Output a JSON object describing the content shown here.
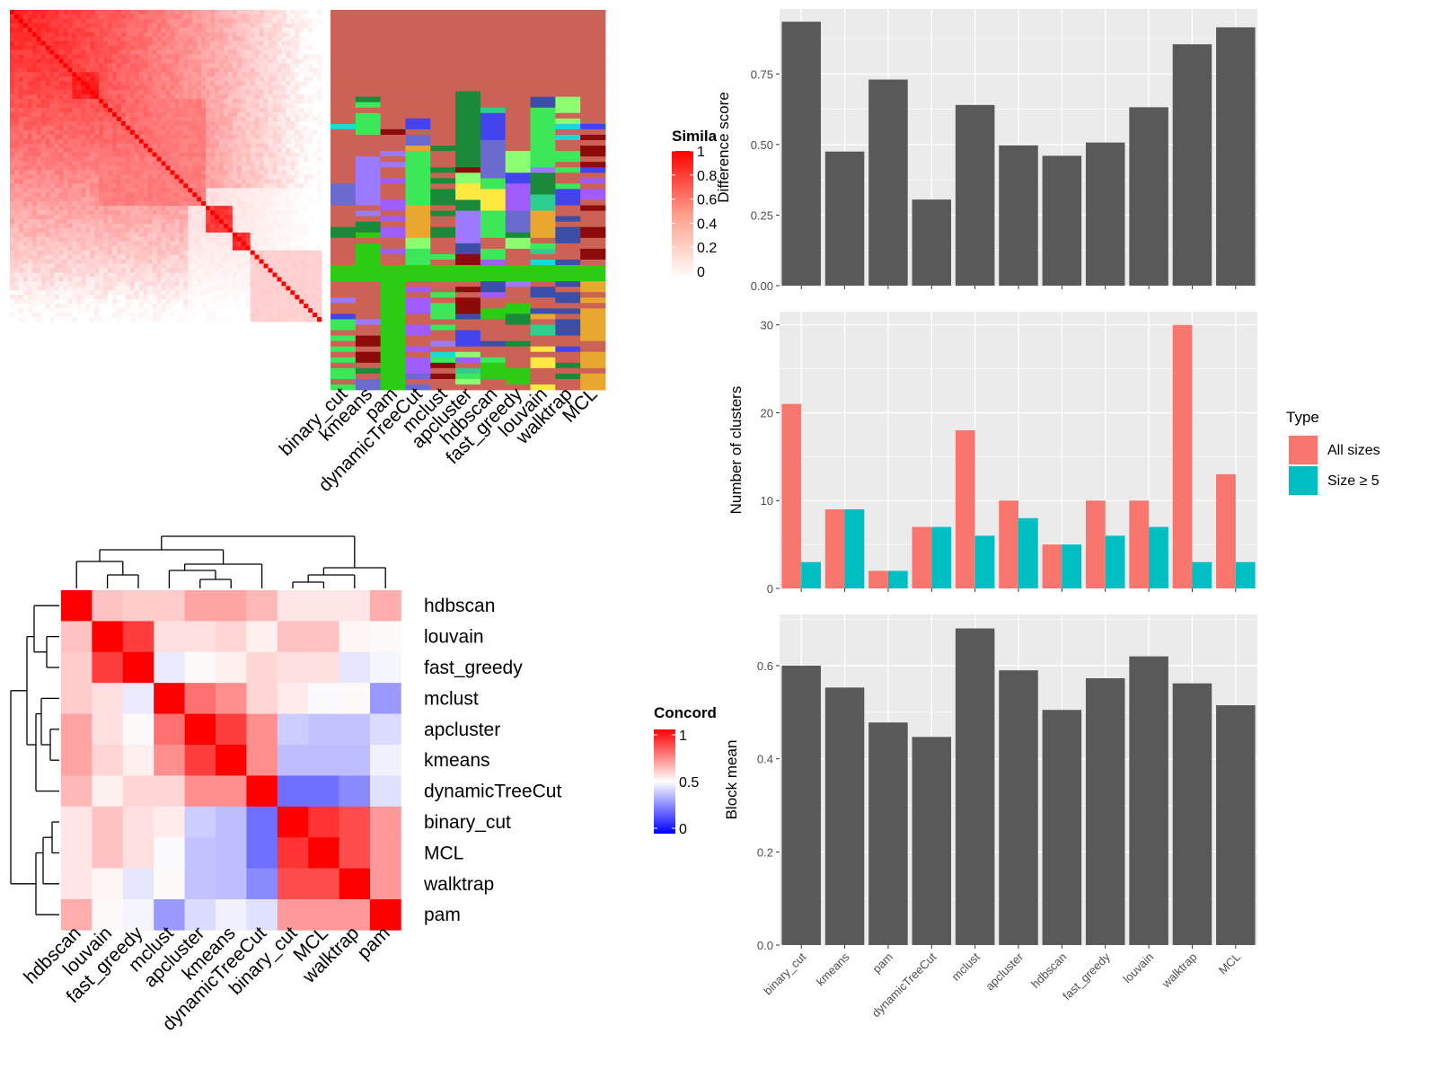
{
  "methods": [
    "binary_cut",
    "kmeans",
    "pam",
    "dynamicTreeCut",
    "mclust",
    "apcluster",
    "hdbscan",
    "fast_greedy",
    "louvain",
    "walktrap",
    "MCL"
  ],
  "similarity_legend": {
    "title": "Simila",
    "ticks": [
      "1",
      "0.8",
      "0.6",
      "0.4",
      "0.2",
      "0"
    ]
  },
  "concordance_legend": {
    "title": "Concord",
    "ticks": [
      "1",
      "0.5",
      "0"
    ]
  },
  "concordance_order": [
    "hdbscan",
    "louvain",
    "fast_greedy",
    "mclust",
    "apcluster",
    "kmeans",
    "dynamicTreeCut",
    "binary_cut",
    "MCL",
    "walktrap",
    "pam"
  ],
  "chart_data": [
    {
      "type": "heatmap",
      "description_key": "similarity",
      "legend": "Simila",
      "columns": [
        "binary_cut",
        "kmeans",
        "pam",
        "dynamicTreeCut",
        "mclust",
        "apcluster",
        "hdbscan",
        "fast_greedy",
        "louvain",
        "walktrap",
        "MCL"
      ],
      "color_range": [
        0,
        1
      ],
      "colors": {
        "low": "#ffffff",
        "high": "#ff0000"
      }
    },
    {
      "type": "heatmap",
      "description_key": "concordance",
      "legend": "Concord",
      "rows": [
        "hdbscan",
        "louvain",
        "fast_greedy",
        "mclust",
        "apcluster",
        "kmeans",
        "dynamicTreeCut",
        "binary_cut",
        "MCL",
        "walktrap",
        "pam"
      ],
      "columns": [
        "hdbscan",
        "louvain",
        "fast_greedy",
        "mclust",
        "apcluster",
        "kmeans",
        "dynamicTreeCut",
        "binary_cut",
        "MCL",
        "walktrap",
        "pam"
      ],
      "color_range": [
        0,
        1
      ],
      "colors": {
        "low": "#0000ff",
        "mid": "#ffffff",
        "high": "#ff0000"
      },
      "values": [
        [
          1.0,
          0.62,
          0.6,
          0.6,
          0.68,
          0.68,
          0.64,
          0.55,
          0.55,
          0.55,
          0.66
        ],
        [
          0.62,
          1.0,
          0.88,
          0.56,
          0.56,
          0.58,
          0.53,
          0.62,
          0.62,
          0.52,
          0.51
        ],
        [
          0.6,
          0.88,
          1.0,
          0.46,
          0.51,
          0.53,
          0.58,
          0.56,
          0.56,
          0.45,
          0.48
        ],
        [
          0.6,
          0.56,
          0.46,
          1.0,
          0.78,
          0.72,
          0.58,
          0.54,
          0.49,
          0.51,
          0.3
        ],
        [
          0.68,
          0.56,
          0.51,
          0.78,
          1.0,
          0.88,
          0.72,
          0.4,
          0.38,
          0.38,
          0.43
        ],
        [
          0.68,
          0.58,
          0.53,
          0.72,
          0.88,
          1.0,
          0.72,
          0.37,
          0.37,
          0.37,
          0.47
        ],
        [
          0.64,
          0.53,
          0.58,
          0.58,
          0.72,
          0.72,
          1.0,
          0.22,
          0.22,
          0.27,
          0.44
        ],
        [
          0.55,
          0.62,
          0.56,
          0.54,
          0.4,
          0.37,
          0.22,
          1.0,
          0.9,
          0.85,
          0.7
        ],
        [
          0.55,
          0.62,
          0.56,
          0.49,
          0.38,
          0.37,
          0.22,
          0.9,
          1.0,
          0.85,
          0.7
        ],
        [
          0.55,
          0.52,
          0.45,
          0.51,
          0.38,
          0.37,
          0.27,
          0.85,
          0.85,
          1.0,
          0.7
        ],
        [
          0.66,
          0.51,
          0.48,
          0.3,
          0.43,
          0.47,
          0.44,
          0.7,
          0.7,
          0.7,
          1.0
        ]
      ]
    },
    {
      "type": "bar",
      "categories": [
        "binary_cut",
        "kmeans",
        "pam",
        "dynamicTreeCut",
        "mclust",
        "apcluster",
        "hdbscan",
        "fast_greedy",
        "louvain",
        "walktrap",
        "MCL"
      ],
      "values": [
        0.935,
        0.475,
        0.73,
        0.305,
        0.64,
        0.497,
        0.46,
        0.507,
        0.632,
        0.855,
        0.915
      ],
      "ylabel": "Difference score",
      "ylim": [
        0,
        0.98
      ],
      "yticks": [
        "0.00",
        "0.25",
        "0.50",
        "0.75"
      ],
      "yticks_values": [
        0,
        0.25,
        0.5,
        0.75
      ],
      "color": "#595959"
    },
    {
      "type": "bar",
      "categories": [
        "binary_cut",
        "kmeans",
        "pam",
        "dynamicTreeCut",
        "mclust",
        "apcluster",
        "hdbscan",
        "fast_greedy",
        "louvain",
        "walktrap",
        "MCL"
      ],
      "series": [
        {
          "name": "All sizes",
          "color": "#F8766D",
          "values": [
            21,
            9,
            2,
            7,
            18,
            10,
            5,
            10,
            10,
            30,
            13
          ]
        },
        {
          "name": "Size ≥ 5",
          "color": "#00BFC4",
          "values": [
            3,
            9,
            2,
            7,
            6,
            8,
            5,
            6,
            7,
            3,
            3
          ]
        }
      ],
      "ylabel": "Number of clusters",
      "ylim": [
        0,
        31.5
      ],
      "yticks": [
        "0",
        "10",
        "20",
        "30"
      ],
      "yticks_values": [
        0,
        10,
        20,
        30
      ],
      "legend_title": "Type",
      "legend_position": "right"
    },
    {
      "type": "bar",
      "categories": [
        "binary_cut",
        "kmeans",
        "pam",
        "dynamicTreeCut",
        "mclust",
        "apcluster",
        "hdbscan",
        "fast_greedy",
        "louvain",
        "walktrap",
        "MCL"
      ],
      "values": [
        0.6,
        0.553,
        0.478,
        0.447,
        0.68,
        0.59,
        0.505,
        0.573,
        0.62,
        0.562,
        0.515
      ],
      "ylabel": "Block mean",
      "ylim": [
        0,
        0.71
      ],
      "yticks": [
        "0.0",
        "0.2",
        "0.4",
        "0.6"
      ],
      "yticks_values": [
        0,
        0.2,
        0.4,
        0.6
      ],
      "color": "#595959"
    }
  ]
}
